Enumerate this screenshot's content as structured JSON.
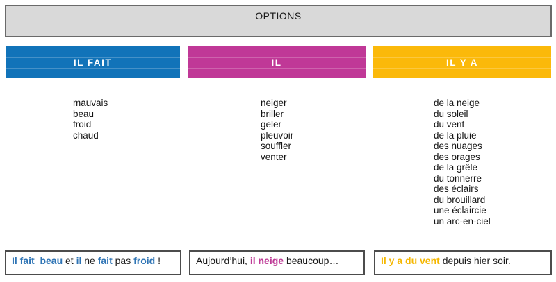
{
  "title": "OPTIONS",
  "colors": {
    "blue": "#2e74b5",
    "magenta": "#be3a96",
    "yellow": "#f5b700",
    "black": "#1a1a1a",
    "header_blue": "#1173b9",
    "header_magenta": "#c03897",
    "header_yellow": "#fbb90a",
    "banner_gray": "#d9d9d9"
  },
  "columns": [
    {
      "label": "IL FAIT",
      "color": "#1173b9",
      "items": [
        "mauvais",
        "beau",
        "froid",
        "chaud"
      ]
    },
    {
      "label": "IL",
      "color": "#c03897",
      "items": [
        "neiger",
        "briller",
        "geler",
        "pleuvoir",
        "souffler",
        "venter"
      ]
    },
    {
      "label": "IL Y A",
      "color": "#fbb90a",
      "items": [
        "de la neige",
        "du soleil",
        "du vent",
        "de la pluie",
        "des nuages",
        "des orages",
        "de la grêle",
        "du tonnerre",
        "des éclairs",
        "du brouillard",
        "une éclaircie",
        "un arc-en-ciel"
      ]
    }
  ],
  "examples": [
    {
      "segments": [
        {
          "text": "Il fait  beau",
          "color": "blue",
          "bold": true
        },
        {
          "text": " et ",
          "color": "black",
          "bold": false
        },
        {
          "text": "il",
          "color": "blue",
          "bold": true
        },
        {
          "text": " ne ",
          "color": "black",
          "bold": false
        },
        {
          "text": "fait",
          "color": "blue",
          "bold": true
        },
        {
          "text": " pas ",
          "color": "black",
          "bold": false
        },
        {
          "text": "froid",
          "color": "blue",
          "bold": true
        },
        {
          "text": " !",
          "color": "black",
          "bold": false
        }
      ]
    },
    {
      "segments": [
        {
          "text": "Aujourd’hui, ",
          "color": "black",
          "bold": false
        },
        {
          "text": "il neige",
          "color": "magenta",
          "bold": true
        },
        {
          "text": " beaucoup…",
          "color": "black",
          "bold": false
        }
      ]
    },
    {
      "segments": [
        {
          "text": "Il y a du vent",
          "color": "yellow",
          "bold": true
        },
        {
          "text": " depuis hier soir.",
          "color": "black",
          "bold": false
        }
      ]
    }
  ]
}
